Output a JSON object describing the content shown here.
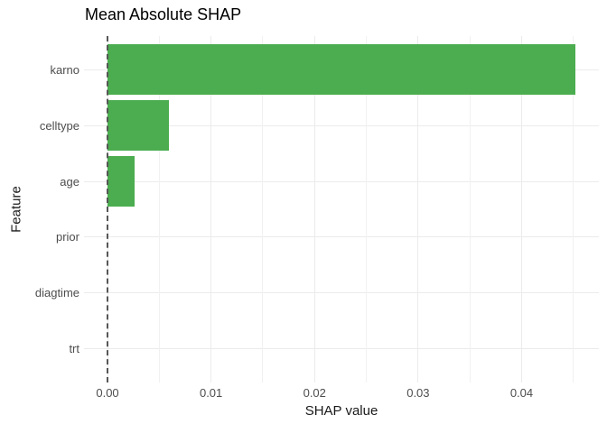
{
  "chart_data": {
    "type": "bar",
    "orientation": "horizontal",
    "title": "Mean Absolute SHAP",
    "xlabel": "SHAP value",
    "ylabel": "Feature",
    "categories": [
      "karno",
      "celltype",
      "age",
      "prior",
      "diagtime",
      "trt"
    ],
    "values": [
      0.0452,
      0.0059,
      0.0026,
      0,
      0,
      0
    ],
    "xlim": [
      -0.00227,
      0.04746
    ],
    "x_tick_values": [
      0,
      0.01,
      0.02,
      0.03,
      0.04
    ],
    "x_tick_labels": [
      "0.00",
      "0.01",
      "0.02",
      "0.03",
      "0.04"
    ],
    "x_minor_tick_values": [
      0.005,
      0.015,
      0.025,
      0.035,
      0.045
    ],
    "grid": "on",
    "legend": "none",
    "bar_color": "#4bad4f",
    "zero_line": {
      "value": 0,
      "style": "dashed",
      "color": "#575757"
    },
    "grid_color": "#ebebeb",
    "background_color": "#ffffff"
  }
}
